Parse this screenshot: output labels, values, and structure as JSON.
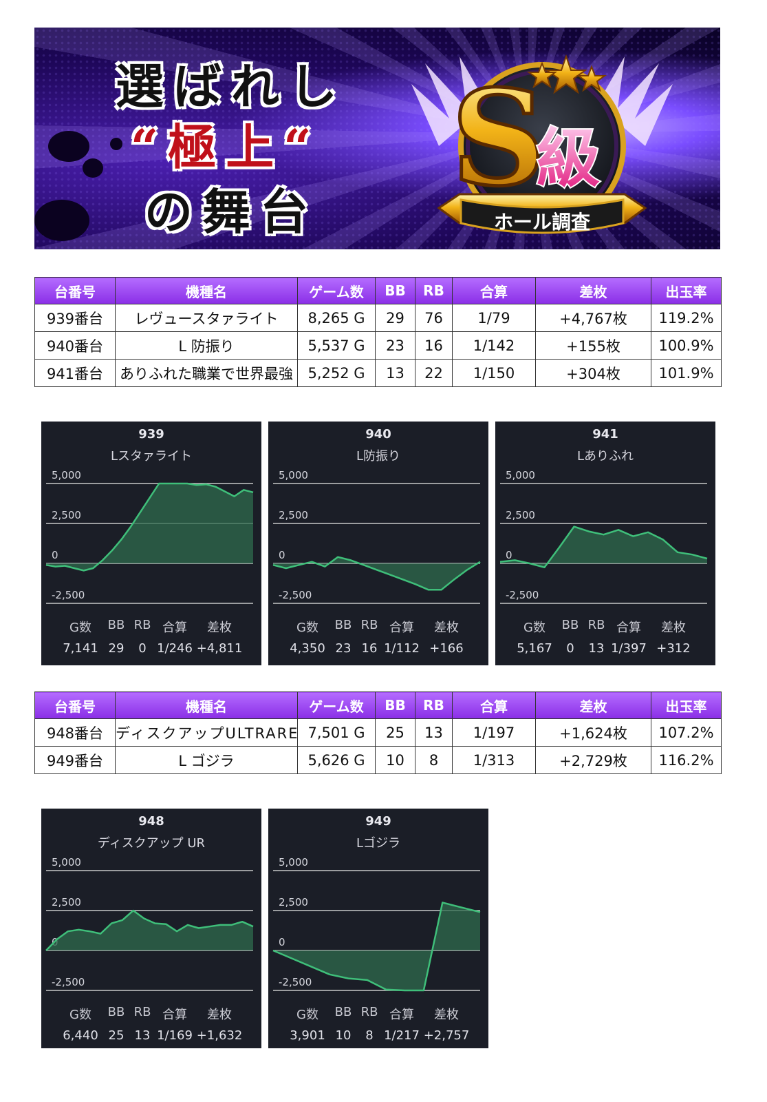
{
  "banner": {
    "line1": "選ばれし",
    "line2": "“極上“",
    "line3": "の舞台",
    "badge_letter": "S",
    "badge_kanji": "級",
    "badge_ribbon": "ホール調査"
  },
  "table1": {
    "headers": [
      "台番号",
      "機種名",
      "ゲーム数",
      "BB",
      "RB",
      "合算",
      "差枚",
      "出玉率"
    ],
    "rows": [
      [
        "939番台",
        "レヴュースタァライト",
        "8,265 G",
        "29",
        "76",
        "1/79",
        "+4,767枚",
        "119.2%"
      ],
      [
        "940番台",
        "L 防振り",
        "5,537 G",
        "23",
        "16",
        "1/142",
        "+155枚",
        "100.9%"
      ],
      [
        "941番台",
        "ありふれた職業で世界最強",
        "5,252 G",
        "13",
        "22",
        "1/150",
        "+304枚",
        "101.9%"
      ]
    ]
  },
  "table2": {
    "headers": [
      "台番号",
      "機種名",
      "ゲーム数",
      "BB",
      "RB",
      "合算",
      "差枚",
      "出玉率"
    ],
    "rows": [
      [
        "948番台",
        "ディスクアップULTRAREMIX",
        "7,501 G",
        "25",
        "13",
        "1/197",
        "+1,624枚",
        "107.2%"
      ],
      [
        "949番台",
        "L ゴジラ",
        "5,626 G",
        "10",
        "8",
        "1/313",
        "+2,729枚",
        "116.2%"
      ]
    ]
  },
  "stat_headers": [
    "G数",
    "BB",
    "RB",
    "合算",
    "差枚"
  ],
  "colors": {
    "line": "#3fbf7a",
    "fill": "#2f6b4e",
    "grid": "#c8c8c8",
    "card_bg": "#1b1e27",
    "header": "#9b4dff",
    "diff_text": "#1515c8"
  },
  "chart_data": [
    {
      "type": "area",
      "number": "939",
      "title": "Lスタァライト",
      "ylim": [
        -2500,
        5000
      ],
      "yticks": [
        "5,000",
        "2,500",
        "0",
        "-2,500"
      ],
      "values": [
        -100,
        -200,
        -150,
        -300,
        -450,
        -300,
        200,
        800,
        1500,
        2300,
        3200,
        4100,
        5000,
        5000,
        5000,
        5000,
        4900,
        4950,
        4800,
        4500,
        4200,
        4600,
        4450
      ],
      "stats": {
        "g": "7,141",
        "bb": "29",
        "rb": "0",
        "total": "1/246",
        "diff": "+4,811"
      }
    },
    {
      "type": "area",
      "number": "940",
      "title": "L防振り",
      "ylim": [
        -2500,
        5000
      ],
      "yticks": [
        "5,000",
        "2,500",
        "0",
        "-2,500"
      ],
      "values": [
        -100,
        -300,
        -100,
        100,
        -200,
        400,
        200,
        -100,
        -400,
        -700,
        -1000,
        -1300,
        -1650,
        -1650,
        -1000,
        -400,
        100
      ],
      "stats": {
        "g": "4,350",
        "bb": "23",
        "rb": "16",
        "total": "1/112",
        "diff": "+166"
      }
    },
    {
      "type": "area",
      "number": "941",
      "title": "Lありふれ",
      "ylim": [
        -2500,
        5000
      ],
      "yticks": [
        "5,000",
        "2,500",
        "0",
        "-2,500"
      ],
      "values": [
        100,
        200,
        0,
        -250,
        1000,
        2300,
        2000,
        1800,
        2100,
        1700,
        1950,
        1500,
        700,
        550,
        300
      ],
      "stats": {
        "g": "5,167",
        "bb": "0",
        "rb": "13",
        "total": "1/397",
        "diff": "+312"
      }
    },
    {
      "type": "area",
      "number": "948",
      "title": "ディスクアップ UR",
      "ylim": [
        -2500,
        5000
      ],
      "yticks": [
        "5,000",
        "2,500",
        "0",
        "-2,500"
      ],
      "values": [
        0,
        700,
        1200,
        1300,
        1200,
        1050,
        1700,
        1900,
        2500,
        2000,
        1700,
        1650,
        1200,
        1600,
        1400,
        1500,
        1600,
        1600,
        1800,
        1500
      ],
      "stats": {
        "g": "6,440",
        "bb": "25",
        "rb": "13",
        "total": "1/169",
        "diff": "+1,632"
      }
    },
    {
      "type": "area",
      "number": "949",
      "title": "Lゴジラ",
      "ylim": [
        -2500,
        5000
      ],
      "yticks": [
        "5,000",
        "2,500",
        "0",
        "-2,500"
      ],
      "values": [
        0,
        -500,
        -1000,
        -1500,
        -1750,
        -1850,
        -2450,
        -2500,
        -2500,
        3000,
        2700,
        2400
      ],
      "stats": {
        "g": "3,901",
        "bb": "10",
        "rb": "8",
        "total": "1/217",
        "diff": "+2,757"
      }
    }
  ]
}
